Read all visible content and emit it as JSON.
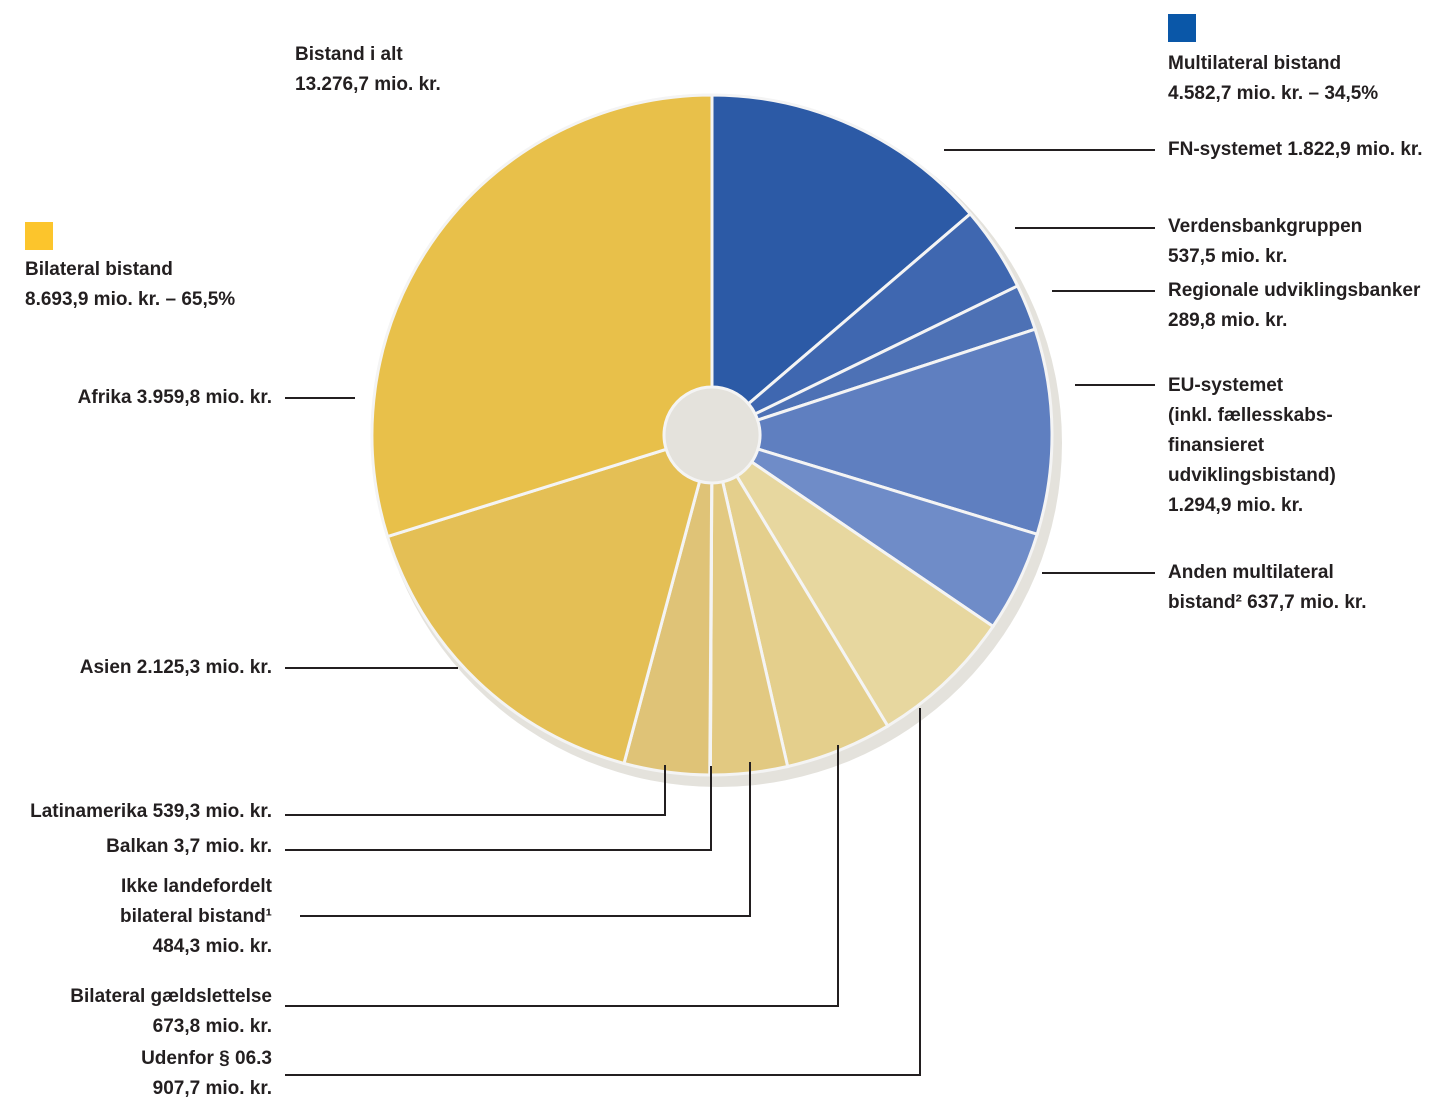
{
  "chart_data": {
    "type": "donut",
    "total": {
      "name": "Bistand i alt",
      "value": 13276.7,
      "value_label": "13.276,7 mio. kr."
    },
    "groups": [
      {
        "name": "Multilateral bistand",
        "value": 4582.7,
        "value_label": "4.582,7 mio. kr. – 34,5%",
        "color": "#0a57a8"
      },
      {
        "name": "Bilateral bistand",
        "value": 8693.9,
        "value_label": "8.693,9 mio. kr. – 65,5%",
        "color": "#fcc52c"
      }
    ],
    "categories": [
      "FN-systemet",
      "Verdensbankgruppen",
      "Regionale udviklingsbanker",
      "EU-systemet\n(inkl. fællesskabs-\nfinansieret\nudviklingsbistand)",
      "Anden multilateral\nbistand²",
      "Udenfor § 06.3",
      "Bilateral gældslettelse",
      "Ikke landefordelt\nbilateral bistand¹",
      "Balkan",
      "Latinamerika",
      "Asien",
      "Afrika"
    ],
    "values": [
      1822.9,
      537.5,
      289.8,
      1294.9,
      637.7,
      907.7,
      673.8,
      484.3,
      3.7,
      539.3,
      2125.3,
      3959.8
    ],
    "value_labels": [
      "1.822,9 mio. kr.",
      "537,5 mio. kr.",
      "289,8 mio. kr.",
      "1.294,9 mio. kr.",
      "637,7 mio. kr.",
      "907,7 mio. kr.",
      "673,8 mio. kr.",
      "484,3 mio. kr.",
      "3,7 mio. kr.",
      "539,3 mio. kr.",
      "2.125,3 mio. kr.",
      "3.959,8 mio. kr."
    ],
    "colors": [
      "#2c5aa6",
      "#3f67b0",
      "#4d71b5",
      "#5f7fc0",
      "#6f8cc8",
      "#e7d79f",
      "#e4cf8c",
      "#e2c981",
      "#e0c57a",
      "#dfc377",
      "#e4bf55",
      "#e8c04a"
    ]
  }
}
